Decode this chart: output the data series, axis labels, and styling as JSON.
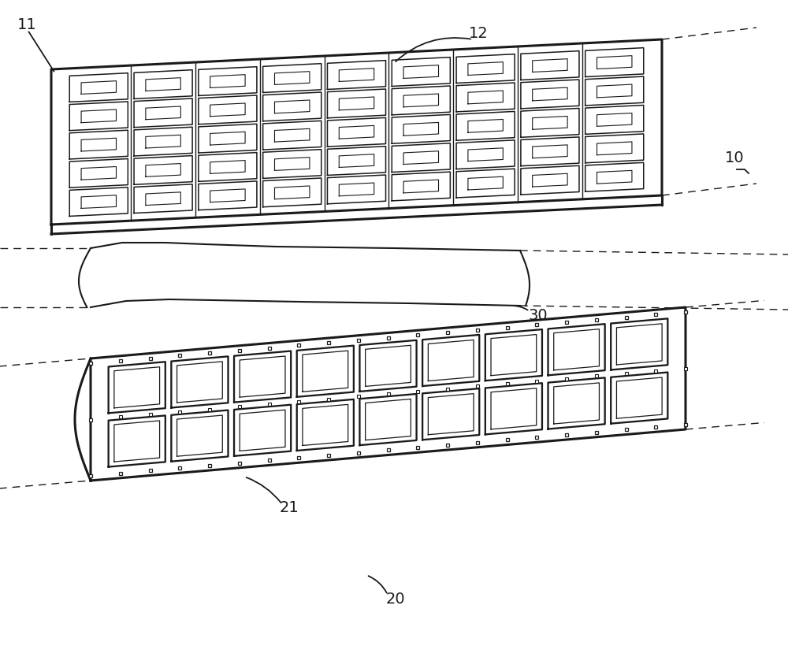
{
  "bg_color": "#ffffff",
  "line_color": "#1a1a1a",
  "label_color": "#1a1a1a",
  "label_fontsize": 14,
  "fig_width": 10.0,
  "fig_height": 8.39,
  "lw_thick": 2.2,
  "lw_main": 1.5,
  "lw_thin": 1.0
}
